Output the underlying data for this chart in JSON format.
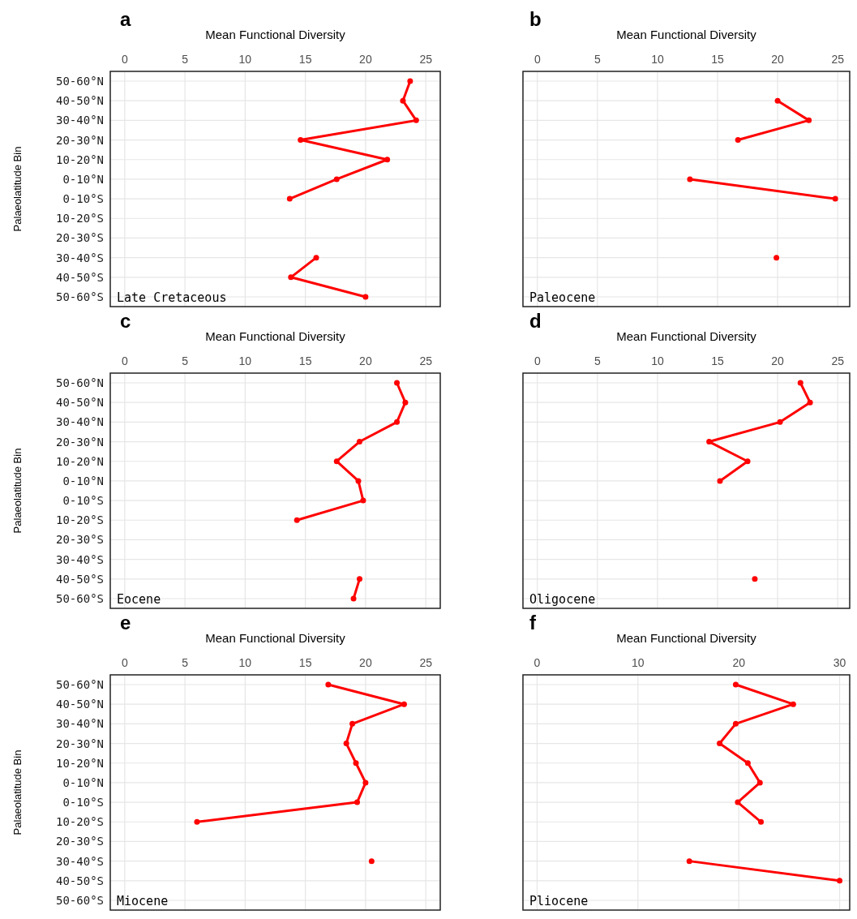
{
  "chart_data": [
    {
      "type": "line",
      "orientation": "horizontal",
      "title": "a",
      "xlabel": "Mean Functional Diversity",
      "ylabel": "Palaeolatitude Bin",
      "categories": [
        "50-60°N",
        "40-50°N",
        "30-40°N",
        "20-30°N",
        "10-20°N",
        "0-10°N",
        "0-10°S",
        "10-20°S",
        "20-30°S",
        "30-40°S",
        "40-50°S",
        "50-60°S"
      ],
      "color": "#ff0000",
      "marker": "circle",
      "grid": true,
      "xlim": [
        -1.2,
        26.2
      ],
      "xticks": [
        0,
        5,
        10,
        15,
        20,
        25
      ],
      "annotations": [
        "Late Cretaceous"
      ],
      "values": [
        23.7,
        23.1,
        24.2,
        14.6,
        21.8,
        17.6,
        13.7,
        null,
        null,
        15.9,
        13.8,
        20.0
      ]
    },
    {
      "type": "line",
      "orientation": "horizontal",
      "title": "b",
      "xlabel": "Mean Functional Diversity",
      "categories": [
        "50-60°N",
        "40-50°N",
        "30-40°N",
        "20-30°N",
        "10-20°N",
        "0-10°N",
        "0-10°S",
        "10-20°S",
        "20-30°S",
        "30-40°S",
        "40-50°S",
        "50-60°S"
      ],
      "color": "#ff0000",
      "marker": "circle",
      "grid": true,
      "tick_labels": "x",
      "xlim": [
        -1.2,
        26
      ],
      "xticks": [
        0,
        5,
        10,
        15,
        20,
        25
      ],
      "annotations": [
        "Paleocene"
      ],
      "values": [
        null,
        20.0,
        22.6,
        16.7,
        null,
        12.7,
        24.8,
        null,
        null,
        19.9,
        null,
        null
      ]
    },
    {
      "type": "line",
      "orientation": "horizontal",
      "title": "c",
      "xlabel": "Mean Functional Diversity",
      "ylabel": "Palaeolatitude Bin",
      "categories": [
        "50-60°N",
        "40-50°N",
        "30-40°N",
        "20-30°N",
        "10-20°N",
        "0-10°N",
        "0-10°S",
        "10-20°S",
        "20-30°S",
        "30-40°S",
        "40-50°S",
        "50-60°S"
      ],
      "color": "#ff0000",
      "marker": "circle",
      "grid": true,
      "xlim": [
        -1.2,
        26.2
      ],
      "xticks": [
        0,
        5,
        10,
        15,
        20,
        25
      ],
      "annotations": [
        "Eocene"
      ],
      "values": [
        22.6,
        23.3,
        22.6,
        19.5,
        17.6,
        19.4,
        19.8,
        14.3,
        null,
        null,
        19.5,
        19.0
      ]
    },
    {
      "type": "line",
      "orientation": "horizontal",
      "title": "d",
      "xlabel": "Mean Functional Diversity",
      "categories": [
        "50-60°N",
        "40-50°N",
        "30-40°N",
        "20-30°N",
        "10-20°N",
        "0-10°N",
        "0-10°S",
        "10-20°S",
        "20-30°S",
        "30-40°S",
        "40-50°S",
        "50-60°S"
      ],
      "color": "#ff0000",
      "marker": "circle",
      "grid": true,
      "tick_labels": "x",
      "xlim": [
        -1.2,
        26
      ],
      "xticks": [
        0,
        5,
        10,
        15,
        20,
        25
      ],
      "annotations": [
        "Oligocene"
      ],
      "values": [
        21.9,
        22.7,
        20.2,
        14.3,
        17.5,
        15.2,
        null,
        null,
        null,
        null,
        18.1,
        null
      ]
    },
    {
      "type": "line",
      "orientation": "horizontal",
      "title": "e",
      "xlabel": "Mean Functional Diversity",
      "ylabel": "Palaeolatitude Bin",
      "categories": [
        "50-60°N",
        "40-50°N",
        "30-40°N",
        "20-30°N",
        "10-20°N",
        "0-10°N",
        "0-10°S",
        "10-20°S",
        "20-30°S",
        "30-40°S",
        "40-50°S",
        "50-60°S"
      ],
      "color": "#ff0000",
      "marker": "circle",
      "grid": true,
      "xlim": [
        -1.2,
        26.2
      ],
      "xticks": [
        0,
        5,
        10,
        15,
        20,
        25
      ],
      "annotations": [
        "Miocene"
      ],
      "values": [
        16.9,
        23.2,
        18.9,
        18.4,
        19.2,
        20.0,
        19.3,
        6.0,
        null,
        20.5,
        null,
        null
      ]
    },
    {
      "type": "line",
      "orientation": "horizontal",
      "title": "f",
      "xlabel": "Mean Functional Diversity",
      "categories": [
        "50-60°N",
        "40-50°N",
        "30-40°N",
        "20-30°N",
        "10-20°N",
        "0-10°N",
        "0-10°S",
        "10-20°S",
        "20-30°S",
        "30-40°S",
        "40-50°S",
        "50-60°S"
      ],
      "color": "#ff0000",
      "marker": "circle",
      "grid": true,
      "tick_labels": "x",
      "xlim": [
        -1.4,
        31
      ],
      "xticks": [
        0,
        10,
        20,
        30
      ],
      "annotations": [
        "Pliocene"
      ],
      "values": [
        19.7,
        25.4,
        19.7,
        18.1,
        20.9,
        22.1,
        19.9,
        22.2,
        null,
        15.1,
        30.0,
        null
      ]
    }
  ]
}
